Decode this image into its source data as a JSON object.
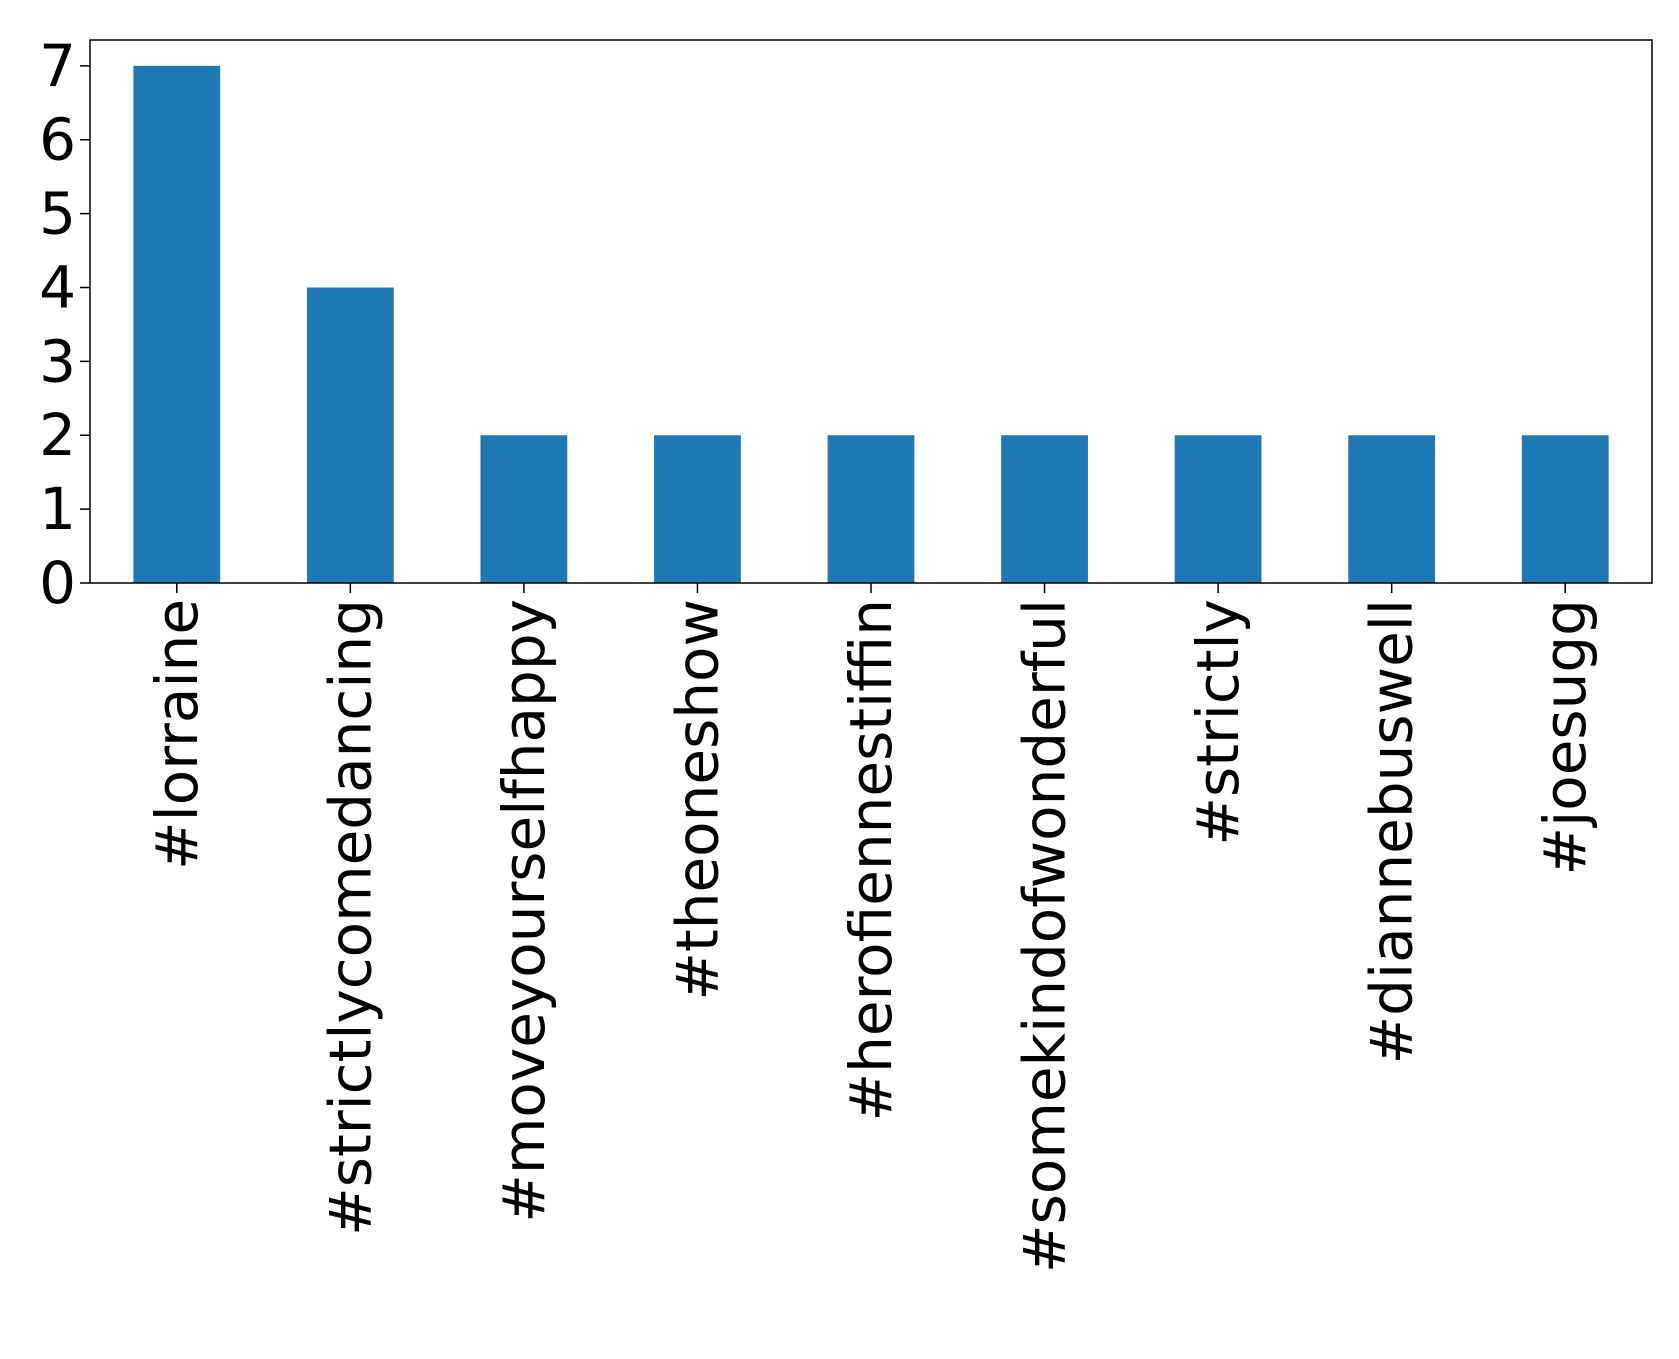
{
  "colors": {
    "bar": "#1f77b4",
    "axis": "#000000",
    "background": "#ffffff"
  },
  "chart_data": {
    "type": "bar",
    "title": "",
    "xlabel": "",
    "ylabel": "",
    "categories": [
      "#lorraine",
      "#strictlycomedancing",
      "#moveyourselfhappy",
      "#theoneshow",
      "#herofiennestiffin",
      "#somekindofwonderful",
      "#strictly",
      "#diannebuswell",
      "#joesugg"
    ],
    "values": [
      7,
      4,
      2,
      2,
      2,
      2,
      2,
      2,
      2
    ],
    "ylim": [
      0,
      7.35
    ],
    "yticks": [
      "0",
      "1",
      "2",
      "3",
      "4",
      "5",
      "6",
      "7"
    ],
    "grid": false,
    "legend": "none"
  }
}
